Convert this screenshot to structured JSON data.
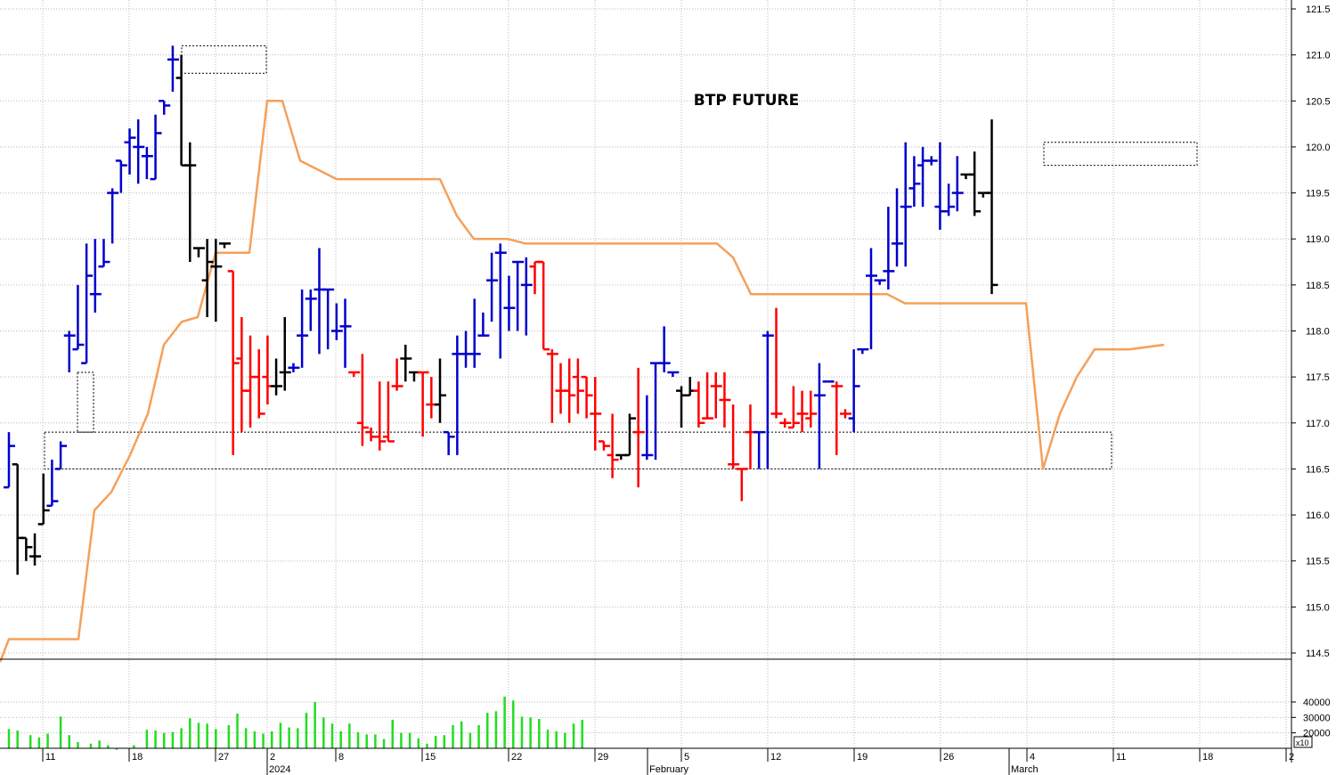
{
  "chart_data": {
    "type": "ohlc",
    "title": "BTP FUTURE",
    "price_axis": {
      "ticks": [
        "121.5",
        "121.0",
        "120.5",
        "120.0",
        "119.5",
        "119.0",
        "118.5",
        "118.0",
        "117.5",
        "117.0",
        "116.5",
        "116.0",
        "115.5",
        "115.0",
        "114.5"
      ],
      "range": [
        114.4,
        121.6
      ]
    },
    "volume_axis": {
      "ticks": [
        "40000",
        "30000",
        "20000"
      ],
      "multiplier_label": "x10",
      "range": [
        8000,
        47000
      ]
    },
    "x_axis": {
      "day_labels": [
        "11",
        "18",
        "27",
        "2",
        "8",
        "15",
        "22",
        "29",
        "5",
        "12",
        "19",
        "26",
        "4",
        "11",
        "18",
        "2"
      ],
      "period_labels": [
        "2024",
        "February",
        "March"
      ]
    },
    "colors": {
      "up": "#0000cc",
      "down": "#ff0000",
      "neutral": "#000000",
      "trend": "#f5a05a",
      "volume": "#22dd22",
      "grid": "#bbbbbb"
    },
    "bars": [
      {
        "o": 116.3,
        "h": 116.9,
        "l": 116.3,
        "c": 116.75,
        "color": "blue"
      },
      {
        "o": 116.55,
        "h": 116.55,
        "l": 115.35,
        "c": 115.75,
        "color": "black"
      },
      {
        "o": 115.75,
        "h": 115.75,
        "l": 115.5,
        "c": 115.65,
        "color": "black"
      },
      {
        "o": 115.55,
        "h": 115.8,
        "l": 115.45,
        "c": 115.55,
        "color": "black"
      },
      {
        "o": 115.9,
        "h": 116.45,
        "l": 115.9,
        "c": 116.05,
        "color": "black"
      },
      {
        "o": 116.1,
        "h": 116.6,
        "l": 116.1,
        "c": 116.15,
        "color": "blue"
      },
      {
        "o": 116.5,
        "h": 116.8,
        "l": 116.5,
        "c": 116.75,
        "color": "blue"
      },
      {
        "o": 117.95,
        "h": 118.0,
        "l": 117.55,
        "c": 117.95,
        "color": "blue"
      },
      {
        "o": 117.8,
        "h": 118.5,
        "l": 117.8,
        "c": 117.85,
        "color": "blue"
      },
      {
        "o": 117.65,
        "h": 118.95,
        "l": 117.65,
        "c": 118.6,
        "color": "blue"
      },
      {
        "o": 118.4,
        "h": 119.0,
        "l": 118.2,
        "c": 118.4,
        "color": "blue"
      },
      {
        "o": 118.7,
        "h": 119.0,
        "l": 118.7,
        "c": 118.75,
        "color": "blue"
      },
      {
        "o": 119.5,
        "h": 119.55,
        "l": 118.95,
        "c": 119.5,
        "color": "blue"
      },
      {
        "o": 119.85,
        "h": 119.85,
        "l": 119.5,
        "c": 119.8,
        "color": "blue"
      },
      {
        "o": 120.05,
        "h": 120.2,
        "l": 119.7,
        "c": 120.1,
        "color": "blue"
      },
      {
        "o": 120.0,
        "h": 120.3,
        "l": 119.6,
        "c": 120.0,
        "color": "blue"
      },
      {
        "o": 119.9,
        "h": 120.0,
        "l": 119.65,
        "c": 119.9,
        "color": "blue"
      },
      {
        "o": 119.65,
        "h": 120.35,
        "l": 119.65,
        "c": 120.15,
        "color": "blue"
      },
      {
        "o": 120.5,
        "h": 120.5,
        "l": 120.35,
        "c": 120.45,
        "color": "blue"
      },
      {
        "o": 120.95,
        "h": 121.1,
        "l": 120.6,
        "c": 120.95,
        "color": "blue"
      },
      {
        "o": 120.75,
        "h": 121.0,
        "l": 119.8,
        "c": 119.8,
        "color": "black"
      },
      {
        "o": 119.8,
        "h": 120.05,
        "l": 118.75,
        "c": 119.8,
        "color": "black"
      },
      {
        "o": 118.9,
        "h": 118.9,
        "l": 118.8,
        "c": 118.9,
        "color": "black"
      },
      {
        "o": 118.55,
        "h": 119.0,
        "l": 118.15,
        "c": 118.75,
        "color": "black"
      },
      {
        "o": 118.7,
        "h": 119.0,
        "l": 118.1,
        "c": 118.7,
        "color": "black"
      },
      {
        "o": 118.95,
        "h": 118.95,
        "l": 118.9,
        "c": 118.95,
        "color": "black"
      },
      {
        "o": 118.65,
        "h": 118.65,
        "l": 116.65,
        "c": 117.65,
        "color": "red"
      },
      {
        "o": 117.7,
        "h": 118.15,
        "l": 116.9,
        "c": 117.35,
        "color": "red"
      },
      {
        "o": 117.35,
        "h": 117.95,
        "l": 116.95,
        "c": 117.5,
        "color": "red"
      },
      {
        "o": 117.5,
        "h": 117.8,
        "l": 117.05,
        "c": 117.1,
        "color": "red"
      },
      {
        "o": 117.5,
        "h": 117.95,
        "l": 117.2,
        "c": 117.4,
        "color": "red"
      },
      {
        "o": 117.4,
        "h": 117.7,
        "l": 117.3,
        "c": 117.4,
        "color": "black"
      },
      {
        "o": 117.55,
        "h": 118.15,
        "l": 117.35,
        "c": 117.55,
        "color": "black"
      },
      {
        "o": 117.6,
        "h": 117.65,
        "l": 117.55,
        "c": 117.6,
        "color": "blue"
      },
      {
        "o": 117.95,
        "h": 118.45,
        "l": 117.6,
        "c": 117.95,
        "color": "blue"
      },
      {
        "o": 118.35,
        "h": 118.45,
        "l": 118.0,
        "c": 118.35,
        "color": "blue"
      },
      {
        "o": 118.45,
        "h": 118.9,
        "l": 117.75,
        "c": 118.45,
        "color": "blue"
      },
      {
        "o": 118.45,
        "h": 118.45,
        "l": 117.8,
        "c": 118.45,
        "color": "blue"
      },
      {
        "o": 118.0,
        "h": 118.3,
        "l": 117.9,
        "c": 118.0,
        "color": "blue"
      },
      {
        "o": 118.05,
        "h": 118.35,
        "l": 117.6,
        "c": 118.05,
        "color": "blue"
      },
      {
        "o": 117.55,
        "h": 117.55,
        "l": 117.5,
        "c": 117.55,
        "color": "red"
      },
      {
        "o": 117.0,
        "h": 117.75,
        "l": 116.75,
        "c": 116.95,
        "color": "red"
      },
      {
        "o": 116.9,
        "h": 116.95,
        "l": 116.8,
        "c": 116.85,
        "color": "red"
      },
      {
        "o": 116.85,
        "h": 117.45,
        "l": 116.7,
        "c": 116.8,
        "color": "red"
      },
      {
        "o": 116.85,
        "h": 117.45,
        "l": 116.8,
        "c": 116.8,
        "color": "red"
      },
      {
        "o": 117.4,
        "h": 117.7,
        "l": 117.35,
        "c": 117.4,
        "color": "red"
      },
      {
        "o": 117.7,
        "h": 117.85,
        "l": 117.45,
        "c": 117.7,
        "color": "black"
      },
      {
        "o": 117.55,
        "h": 117.55,
        "l": 117.45,
        "c": 117.55,
        "color": "black"
      },
      {
        "o": 117.55,
        "h": 117.55,
        "l": 116.85,
        "c": 117.55,
        "color": "red"
      },
      {
        "o": 117.2,
        "h": 117.5,
        "l": 117.05,
        "c": 117.2,
        "color": "red"
      },
      {
        "o": 117.2,
        "h": 117.7,
        "l": 117.0,
        "c": 117.3,
        "color": "black"
      },
      {
        "o": 116.9,
        "h": 116.9,
        "l": 116.65,
        "c": 116.85,
        "color": "blue"
      },
      {
        "o": 117.75,
        "h": 117.95,
        "l": 116.65,
        "c": 117.75,
        "color": "blue"
      },
      {
        "o": 117.75,
        "h": 118.0,
        "l": 117.6,
        "c": 117.75,
        "color": "blue"
      },
      {
        "o": 117.75,
        "h": 118.35,
        "l": 117.6,
        "c": 117.75,
        "color": "blue"
      },
      {
        "o": 117.95,
        "h": 118.2,
        "l": 117.95,
        "c": 117.95,
        "color": "blue"
      },
      {
        "o": 118.55,
        "h": 118.85,
        "l": 118.1,
        "c": 118.55,
        "color": "blue"
      },
      {
        "o": 118.85,
        "h": 118.95,
        "l": 117.7,
        "c": 118.85,
        "color": "blue"
      },
      {
        "o": 118.25,
        "h": 118.6,
        "l": 118.0,
        "c": 118.25,
        "color": "blue"
      },
      {
        "o": 118.75,
        "h": 118.75,
        "l": 118.0,
        "c": 118.75,
        "color": "blue"
      },
      {
        "o": 118.5,
        "h": 118.8,
        "l": 117.95,
        "c": 118.5,
        "color": "blue"
      },
      {
        "o": 118.7,
        "h": 118.75,
        "l": 118.4,
        "c": 118.75,
        "color": "red"
      },
      {
        "o": 118.75,
        "h": 118.75,
        "l": 117.8,
        "c": 117.8,
        "color": "red"
      },
      {
        "o": 117.75,
        "h": 117.8,
        "l": 117.0,
        "c": 117.75,
        "color": "red"
      },
      {
        "o": 117.35,
        "h": 117.65,
        "l": 117.1,
        "c": 117.35,
        "color": "red"
      },
      {
        "o": 117.35,
        "h": 117.7,
        "l": 117.0,
        "c": 117.3,
        "color": "red"
      },
      {
        "o": 117.5,
        "h": 117.7,
        "l": 117.1,
        "c": 117.35,
        "color": "red"
      },
      {
        "o": 117.5,
        "h": 117.5,
        "l": 117.05,
        "c": 117.3,
        "color": "red"
      },
      {
        "o": 117.1,
        "h": 117.5,
        "l": 116.7,
        "c": 117.1,
        "color": "red"
      },
      {
        "o": 116.8,
        "h": 116.8,
        "l": 116.7,
        "c": 116.75,
        "color": "red"
      },
      {
        "o": 116.65,
        "h": 117.1,
        "l": 116.4,
        "c": 116.6,
        "color": "red"
      },
      {
        "o": 116.65,
        "h": 116.65,
        "l": 116.6,
        "c": 116.65,
        "color": "black"
      },
      {
        "o": 116.65,
        "h": 117.1,
        "l": 116.65,
        "c": 117.05,
        "color": "black"
      },
      {
        "o": 116.9,
        "h": 117.6,
        "l": 116.3,
        "c": 116.9,
        "color": "red"
      },
      {
        "o": 116.65,
        "h": 117.3,
        "l": 116.6,
        "c": 116.65,
        "color": "blue"
      },
      {
        "o": 117.65,
        "h": 117.65,
        "l": 116.6,
        "c": 117.65,
        "color": "blue"
      },
      {
        "o": 117.65,
        "h": 118.05,
        "l": 117.55,
        "c": 117.65,
        "color": "blue"
      },
      {
        "o": 117.55,
        "h": 117.55,
        "l": 117.5,
        "c": 117.55,
        "color": "blue"
      },
      {
        "o": 117.35,
        "h": 117.4,
        "l": 116.95,
        "c": 117.3,
        "color": "black"
      },
      {
        "o": 117.3,
        "h": 117.5,
        "l": 117.3,
        "c": 117.35,
        "color": "black"
      },
      {
        "o": 117.35,
        "h": 117.45,
        "l": 116.95,
        "c": 117.0,
        "color": "red"
      },
      {
        "o": 117.05,
        "h": 117.55,
        "l": 117.05,
        "c": 117.05,
        "color": "red"
      },
      {
        "o": 117.4,
        "h": 117.55,
        "l": 117.05,
        "c": 117.4,
        "color": "red"
      },
      {
        "o": 117.25,
        "h": 117.55,
        "l": 116.95,
        "c": 117.25,
        "color": "red"
      },
      {
        "o": 116.55,
        "h": 117.2,
        "l": 116.5,
        "c": 116.55,
        "color": "red"
      },
      {
        "o": 116.5,
        "h": 116.5,
        "l": 116.15,
        "c": 116.5,
        "color": "red"
      },
      {
        "o": 116.9,
        "h": 117.2,
        "l": 116.5,
        "c": 116.9,
        "color": "red"
      },
      {
        "o": 116.9,
        "h": 116.9,
        "l": 116.5,
        "c": 116.9,
        "color": "blue"
      },
      {
        "o": 117.95,
        "h": 118.0,
        "l": 116.5,
        "c": 117.95,
        "color": "blue"
      },
      {
        "o": 117.1,
        "h": 118.25,
        "l": 117.05,
        "c": 117.1,
        "color": "red"
      },
      {
        "o": 117.0,
        "h": 117.05,
        "l": 116.95,
        "c": 117.0,
        "color": "red"
      },
      {
        "o": 116.95,
        "h": 117.4,
        "l": 116.95,
        "c": 117.0,
        "color": "red"
      },
      {
        "o": 117.1,
        "h": 117.35,
        "l": 116.9,
        "c": 117.1,
        "color": "red"
      },
      {
        "o": 117.05,
        "h": 117.35,
        "l": 116.95,
        "c": 117.1,
        "color": "red"
      },
      {
        "o": 117.3,
        "h": 117.65,
        "l": 116.5,
        "c": 117.3,
        "color": "blue"
      },
      {
        "o": 117.45,
        "h": 117.45,
        "l": 117.45,
        "c": 117.45,
        "color": "blue"
      },
      {
        "o": 117.4,
        "h": 117.45,
        "l": 116.65,
        "c": 117.4,
        "color": "red"
      },
      {
        "o": 117.1,
        "h": 117.15,
        "l": 117.05,
        "c": 117.1,
        "color": "red"
      },
      {
        "o": 117.05,
        "h": 117.8,
        "l": 116.9,
        "c": 117.4,
        "color": "blue"
      },
      {
        "o": 117.8,
        "h": 117.8,
        "l": 117.75,
        "c": 117.8,
        "color": "blue"
      },
      {
        "o": 118.6,
        "h": 118.9,
        "l": 117.8,
        "c": 118.6,
        "color": "blue"
      },
      {
        "o": 118.55,
        "h": 118.55,
        "l": 118.5,
        "c": 118.55,
        "color": "blue"
      },
      {
        "o": 118.65,
        "h": 119.35,
        "l": 118.45,
        "c": 118.65,
        "color": "blue"
      },
      {
        "o": 118.95,
        "h": 119.55,
        "l": 118.7,
        "c": 118.95,
        "color": "blue"
      },
      {
        "o": 119.35,
        "h": 120.05,
        "l": 118.7,
        "c": 119.35,
        "color": "blue"
      },
      {
        "o": 119.55,
        "h": 119.9,
        "l": 119.35,
        "c": 119.6,
        "color": "blue"
      },
      {
        "o": 119.8,
        "h": 120.0,
        "l": 119.35,
        "c": 119.85,
        "color": "blue"
      },
      {
        "o": 119.85,
        "h": 119.9,
        "l": 119.8,
        "c": 119.85,
        "color": "blue"
      },
      {
        "o": 119.35,
        "h": 120.05,
        "l": 119.1,
        "c": 119.3,
        "color": "blue"
      },
      {
        "o": 119.3,
        "h": 119.6,
        "l": 119.25,
        "c": 119.35,
        "color": "blue"
      },
      {
        "o": 119.5,
        "h": 119.9,
        "l": 119.3,
        "c": 119.5,
        "color": "blue"
      },
      {
        "o": 119.7,
        "h": 119.7,
        "l": 119.65,
        "c": 119.7,
        "color": "black"
      },
      {
        "o": 119.7,
        "h": 119.95,
        "l": 119.25,
        "c": 119.3,
        "color": "black"
      },
      {
        "o": 119.5,
        "h": 119.5,
        "l": 119.45,
        "c": 119.5,
        "color": "black"
      },
      {
        "o": 119.5,
        "h": 120.3,
        "l": 118.4,
        "c": 118.5,
        "color": "black"
      }
    ],
    "volume": [
      22500,
      0,
      21500,
      0,
      0,
      18500,
      0,
      17000,
      0,
      19500,
      0,
      0,
      30500,
      0,
      18500,
      0,
      14000,
      0,
      0,
      13000,
      0,
      15000,
      0,
      12000,
      0,
      9000,
      0,
      10000,
      0,
      12000,
      0,
      0,
      22000,
      0,
      21500,
      0,
      20000,
      0,
      20500,
      0,
      23000,
      0,
      29500,
      0,
      26500,
      0,
      26000,
      0,
      22500,
      0,
      0,
      25000,
      0,
      32500,
      0,
      23000,
      0,
      21000,
      0,
      19500,
      0,
      21000,
      0,
      26500,
      0,
      23500,
      0,
      23000,
      0,
      33000,
      0,
      40000,
      0,
      30000,
      0,
      26000,
      0,
      21000,
      0,
      26000,
      0,
      20500,
      0,
      19000,
      0,
      19000,
      0,
      16000,
      0,
      28500,
      0,
      20000,
      0,
      20000,
      0,
      16500,
      0,
      13000,
      0,
      18000,
      0,
      18500,
      0,
      25000,
      0,
      27500,
      0,
      20000,
      0,
      25000,
      0,
      33000,
      0,
      34000,
      0,
      43500,
      0,
      41000,
      0,
      30500,
      0,
      30000,
      0,
      29000,
      0,
      22000,
      0,
      21000,
      0,
      20000,
      0,
      26000,
      0,
      28500
    ],
    "trend_line": [
      [
        0,
        114.4
      ],
      [
        10,
        114.65
      ],
      [
        88,
        114.65
      ],
      [
        106,
        116.05
      ],
      [
        125,
        116.25
      ],
      [
        146,
        116.65
      ],
      [
        166,
        117.1
      ],
      [
        184,
        117.85
      ],
      [
        204,
        118.1
      ],
      [
        222,
        118.15
      ],
      [
        242,
        118.85
      ],
      [
        280,
        118.85
      ],
      [
        300,
        120.5
      ],
      [
        317,
        120.5
      ],
      [
        337,
        119.85
      ],
      [
        378,
        119.65
      ],
      [
        494,
        119.65
      ],
      [
        513,
        119.25
      ],
      [
        532,
        119.0
      ],
      [
        570,
        119.0
      ],
      [
        590,
        118.95
      ],
      [
        805,
        118.95
      ],
      [
        823,
        118.8
      ],
      [
        843,
        118.4
      ],
      [
        996,
        118.4
      ],
      [
        1016,
        118.3
      ],
      [
        1152,
        118.3
      ],
      [
        1171,
        116.5
      ],
      [
        1190,
        117.1
      ],
      [
        1209,
        117.5
      ],
      [
        1229,
        117.8
      ],
      [
        1268,
        117.8
      ],
      [
        1307,
        117.85
      ]
    ],
    "zones": [
      {
        "type": "dashed-box",
        "x0": 204,
        "x1": 299,
        "y_top": 121.1,
        "y_bot": 120.8
      },
      {
        "type": "dashed-box",
        "x0": 87,
        "x1": 105,
        "y_top": 117.55,
        "y_bot": 116.9
      },
      {
        "type": "dashed-box",
        "x0": 50,
        "x1": 1248,
        "y_top": 116.9,
        "y_bot": 116.5
      },
      {
        "type": "dashed-box",
        "x0": 1172,
        "x1": 1344,
        "y_top": 120.05,
        "y_bot": 119.8
      }
    ]
  }
}
